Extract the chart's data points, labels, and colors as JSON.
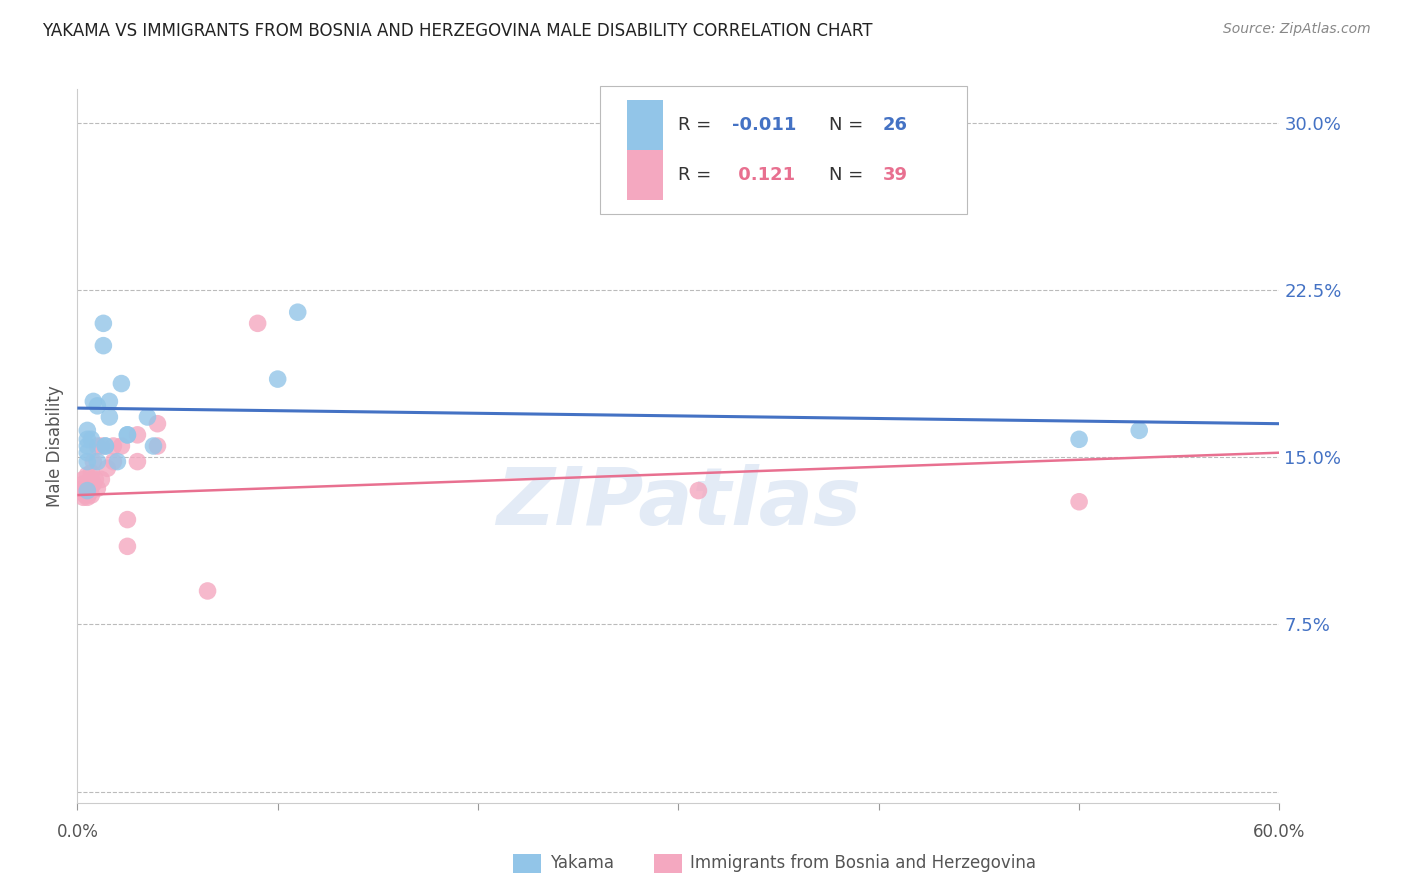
{
  "title": "YAKAMA VS IMMIGRANTS FROM BOSNIA AND HERZEGOVINA MALE DISABILITY CORRELATION CHART",
  "source": "Source: ZipAtlas.com",
  "ylabel": "Male Disability",
  "yticks": [
    0.0,
    0.075,
    0.15,
    0.225,
    0.3
  ],
  "ytick_labels": [
    "",
    "7.5%",
    "15.0%",
    "22.5%",
    "30.0%"
  ],
  "xlim": [
    0.0,
    0.6
  ],
  "ylim": [
    -0.005,
    0.315
  ],
  "legend_blue_r": "-0.011",
  "legend_blue_n": "26",
  "legend_pink_r": "0.121",
  "legend_pink_n": "39",
  "legend_label_blue": "Yakama",
  "legend_label_pink": "Immigrants from Bosnia and Herzegovina",
  "blue_scatter_x": [
    0.005,
    0.005,
    0.005,
    0.005,
    0.005,
    0.005,
    0.007,
    0.008,
    0.01,
    0.01,
    0.013,
    0.013,
    0.014,
    0.014,
    0.016,
    0.016,
    0.02,
    0.022,
    0.025,
    0.025,
    0.035,
    0.038,
    0.1,
    0.11,
    0.5,
    0.53
  ],
  "blue_scatter_y": [
    0.135,
    0.148,
    0.152,
    0.155,
    0.158,
    0.162,
    0.158,
    0.175,
    0.148,
    0.173,
    0.2,
    0.21,
    0.155,
    0.155,
    0.168,
    0.175,
    0.148,
    0.183,
    0.16,
    0.16,
    0.168,
    0.155,
    0.185,
    0.215,
    0.158,
    0.162
  ],
  "pink_scatter_x": [
    0.003,
    0.003,
    0.003,
    0.003,
    0.003,
    0.004,
    0.004,
    0.005,
    0.005,
    0.005,
    0.005,
    0.006,
    0.006,
    0.006,
    0.007,
    0.007,
    0.007,
    0.007,
    0.008,
    0.008,
    0.009,
    0.01,
    0.01,
    0.012,
    0.012,
    0.015,
    0.018,
    0.018,
    0.022,
    0.025,
    0.025,
    0.03,
    0.03,
    0.04,
    0.04,
    0.065,
    0.09,
    0.31,
    0.5
  ],
  "pink_scatter_y": [
    0.132,
    0.134,
    0.136,
    0.138,
    0.14,
    0.133,
    0.136,
    0.132,
    0.135,
    0.138,
    0.142,
    0.134,
    0.136,
    0.139,
    0.133,
    0.137,
    0.14,
    0.143,
    0.138,
    0.148,
    0.14,
    0.136,
    0.155,
    0.14,
    0.155,
    0.145,
    0.148,
    0.155,
    0.155,
    0.11,
    0.122,
    0.148,
    0.16,
    0.155,
    0.165,
    0.09,
    0.21,
    0.135,
    0.13
  ],
  "blue_line_x": [
    0.0,
    0.6
  ],
  "blue_line_y": [
    0.172,
    0.165
  ],
  "pink_line_x": [
    0.0,
    0.6
  ],
  "pink_line_y": [
    0.133,
    0.152
  ],
  "bg_color": "#ffffff",
  "blue_color": "#92c5e8",
  "pink_color": "#f4a8c0",
  "blue_line_color": "#4472c4",
  "pink_line_color": "#e87090",
  "grid_color": "#bbbbbb",
  "title_color": "#222222",
  "axis_color": "#4472c4",
  "watermark": "ZIPatlas"
}
